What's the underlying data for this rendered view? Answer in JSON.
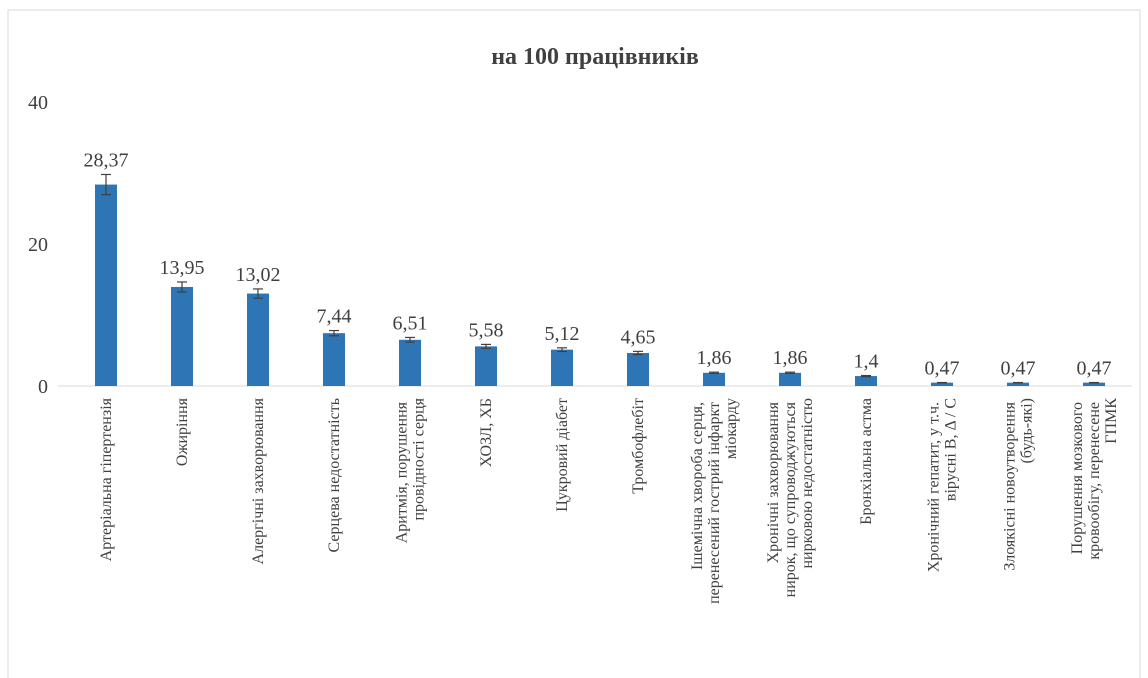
{
  "chart_data": {
    "type": "bar",
    "title": "на 100 працівників",
    "categories": [
      "Артеріальна гіпертензія",
      "Ожиріння",
      "Алергічні захворювання",
      "Серцева недостатність",
      "Аритмія, порушення\nпровідності серця",
      "ХОЗЛ, ХБ",
      "Цукровий діабет",
      "Тромбофлебіт",
      "Ішемічна хвороба серця,\nперенесений гострий інфаркт\nміокарду",
      "Хронічні захворювання\nнирок, що супроводжуються\nнирковою недостатністю",
      "Бронхіальна астма",
      "Хронічний гепатит, у т.ч.\nвірусні В, Δ / С",
      "Злоякісні новоутворення\n(будь-які)",
      "Порушення мозкового\nкровообігу, перенесене\nГПМК"
    ],
    "values": [
      28.37,
      13.95,
      13.02,
      7.44,
      6.51,
      5.58,
      5.12,
      4.65,
      1.86,
      1.86,
      1.4,
      0.47,
      0.47,
      0.47
    ],
    "value_labels": [
      "28,37",
      "13,95",
      "13,02",
      "7,44",
      "6,51",
      "5,58",
      "5,12",
      "4,65",
      "1,86",
      "1,86",
      "1,4",
      "0,47",
      "0,47",
      "0,47"
    ],
    "errors": [
      1.42,
      0.7,
      0.65,
      0.37,
      0.33,
      0.28,
      0.26,
      0.23,
      0.09,
      0.09,
      0.07,
      0.02,
      0.02,
      0.02
    ],
    "color": "#2e75b6",
    "ylim": [
      0,
      40
    ],
    "yticks": [
      0,
      20,
      40
    ],
    "grid": false
  }
}
